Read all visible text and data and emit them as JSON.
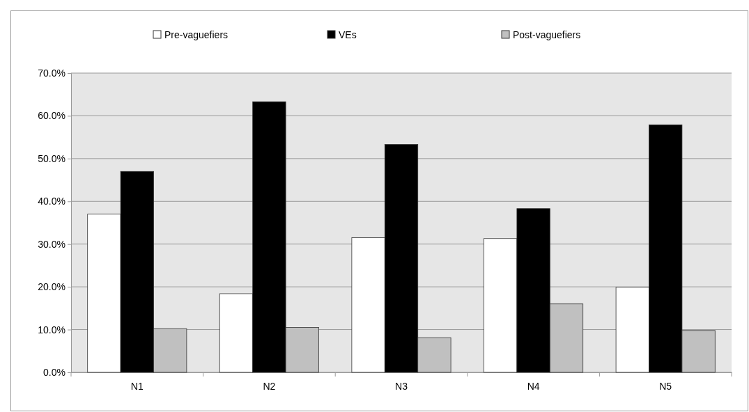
{
  "chart_data": {
    "type": "bar",
    "categories": [
      "N1",
      "N2",
      "N3",
      "N4",
      "N5"
    ],
    "series": [
      {
        "name": "Pre-vaguefiers",
        "color": "#ffffff",
        "values": [
          37.0,
          18.4,
          31.5,
          31.3,
          19.9
        ]
      },
      {
        "name": "VEs",
        "color": "#000000",
        "values": [
          47.0,
          63.3,
          53.3,
          38.3,
          57.9
        ]
      },
      {
        "name": "Post-vaguefiers",
        "color": "#c0c0c0",
        "values": [
          10.2,
          10.5,
          8.1,
          16.0,
          9.8
        ]
      }
    ],
    "ylim": [
      0,
      70
    ],
    "yticks": [
      {
        "value": 0,
        "label": "0.0%"
      },
      {
        "value": 10,
        "label": "10.0%"
      },
      {
        "value": 20,
        "label": "20.0%"
      },
      {
        "value": 30,
        "label": "30.0%"
      },
      {
        "value": 40,
        "label": "40.0%"
      },
      {
        "value": 50,
        "label": "50.0%"
      },
      {
        "value": 60,
        "label": "60.0%"
      },
      {
        "value": 70,
        "label": "70.0%"
      }
    ],
    "grid": "y",
    "legend": "top"
  }
}
